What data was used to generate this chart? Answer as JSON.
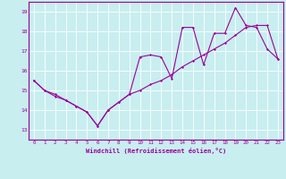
{
  "xlabel": "Windchill (Refroidissement éolien,°C)",
  "xlim": [
    -0.5,
    23.5
  ],
  "ylim": [
    12.5,
    19.5
  ],
  "yticks": [
    13,
    14,
    15,
    16,
    17,
    18,
    19
  ],
  "xticks": [
    0,
    1,
    2,
    3,
    4,
    5,
    6,
    7,
    8,
    9,
    10,
    11,
    12,
    13,
    14,
    15,
    16,
    17,
    18,
    19,
    20,
    21,
    22,
    23
  ],
  "bg_color": "#c8eef0",
  "line_color": "#990099",
  "grid_color": "#ffffff",
  "series1_x": [
    0,
    1,
    2,
    3,
    4,
    5,
    6,
    7,
    8,
    9,
    10,
    11,
    12,
    13,
    14,
    15,
    16,
    17,
    18,
    19,
    20,
    21,
    22,
    23
  ],
  "series1_y": [
    15.5,
    15.0,
    14.8,
    14.5,
    14.2,
    13.9,
    13.2,
    14.0,
    14.4,
    14.8,
    15.0,
    15.3,
    15.5,
    15.8,
    16.2,
    16.5,
    16.8,
    17.1,
    17.4,
    17.8,
    18.2,
    18.3,
    18.3,
    16.6
  ],
  "series2_x": [
    0,
    1,
    2,
    3,
    4,
    5,
    6,
    7,
    8,
    9,
    10,
    11,
    12,
    13,
    14,
    15,
    16,
    17,
    18,
    19,
    20,
    21,
    22,
    23
  ],
  "series2_y": [
    15.5,
    15.0,
    14.7,
    14.5,
    14.2,
    13.9,
    13.2,
    14.0,
    14.4,
    14.8,
    16.7,
    16.8,
    16.7,
    15.6,
    18.2,
    18.2,
    16.3,
    17.9,
    17.9,
    19.2,
    18.3,
    18.2,
    17.1,
    16.6
  ]
}
